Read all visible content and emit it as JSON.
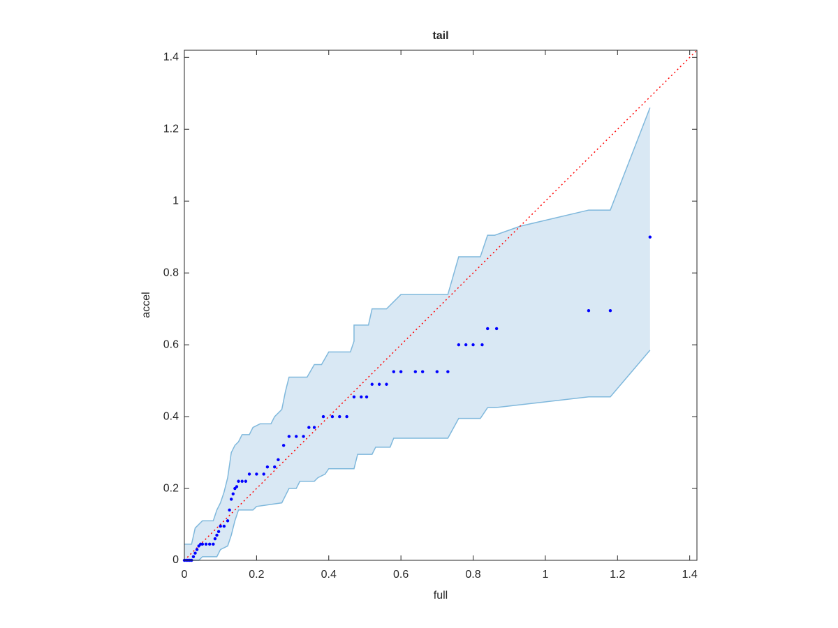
{
  "chart_data": {
    "type": "scatter",
    "title": "tail",
    "xlabel": "full",
    "ylabel": "accel",
    "xlim": [
      0,
      1.42
    ],
    "ylim": [
      0,
      1.42
    ],
    "xticks": [
      0,
      0.2,
      0.4,
      0.6,
      0.8,
      1,
      1.2,
      1.4
    ],
    "yticks": [
      0,
      0.2,
      0.4,
      0.6,
      0.8,
      1,
      1.2,
      1.4
    ],
    "points": {
      "color": "#0000ff",
      "x": [
        0,
        0.005,
        0.01,
        0.015,
        0.02,
        0.025,
        0.03,
        0.035,
        0.04,
        0.045,
        0.05,
        0.06,
        0.07,
        0.08,
        0.085,
        0.09,
        0.095,
        0.1,
        0.11,
        0.12,
        0.125,
        0.13,
        0.135,
        0.14,
        0.145,
        0.15,
        0.16,
        0.17,
        0.18,
        0.2,
        0.22,
        0.23,
        0.25,
        0.26,
        0.275,
        0.29,
        0.31,
        0.33,
        0.345,
        0.36,
        0.385,
        0.41,
        0.43,
        0.45,
        0.47,
        0.49,
        0.505,
        0.52,
        0.54,
        0.56,
        0.58,
        0.6,
        0.64,
        0.66,
        0.7,
        0.73,
        0.76,
        0.78,
        0.8,
        0.825,
        0.84,
        0.865,
        1.12,
        1.18,
        1.29
      ],
      "values": [
        0,
        0,
        0,
        0,
        0,
        0.01,
        0.02,
        0.03,
        0.04,
        0.045,
        0.045,
        0.045,
        0.045,
        0.045,
        0.06,
        0.07,
        0.08,
        0.095,
        0.095,
        0.11,
        0.14,
        0.17,
        0.185,
        0.2,
        0.205,
        0.22,
        0.22,
        0.22,
        0.24,
        0.24,
        0.24,
        0.26,
        0.26,
        0.28,
        0.32,
        0.345,
        0.345,
        0.345,
        0.37,
        0.37,
        0.4,
        0.4,
        0.4,
        0.4,
        0.455,
        0.455,
        0.455,
        0.49,
        0.49,
        0.49,
        0.525,
        0.525,
        0.525,
        0.525,
        0.525,
        0.525,
        0.6,
        0.6,
        0.6,
        0.6,
        0.645,
        0.645,
        0.695,
        0.695,
        0.9
      ]
    },
    "envelope": {
      "color": "#7fb8dc",
      "fill": "#d9e8f4",
      "upper": {
        "x": [
          0,
          0.02,
          0.03,
          0.05,
          0.08,
          0.09,
          0.1,
          0.11,
          0.12,
          0.13,
          0.14,
          0.15,
          0.16,
          0.18,
          0.19,
          0.21,
          0.24,
          0.25,
          0.27,
          0.28,
          0.29,
          0.34,
          0.36,
          0.38,
          0.4,
          0.46,
          0.47,
          0.47,
          0.51,
          0.52,
          0.56,
          0.6,
          0.73,
          0.76,
          0.82,
          0.84,
          0.86,
          0.93,
          1.12,
          1.18,
          1.29
        ],
        "values": [
          0.045,
          0.045,
          0.09,
          0.11,
          0.11,
          0.14,
          0.16,
          0.19,
          0.23,
          0.3,
          0.32,
          0.33,
          0.35,
          0.35,
          0.37,
          0.38,
          0.38,
          0.4,
          0.42,
          0.47,
          0.51,
          0.51,
          0.545,
          0.545,
          0.58,
          0.58,
          0.61,
          0.655,
          0.655,
          0.7,
          0.7,
          0.74,
          0.74,
          0.845,
          0.845,
          0.905,
          0.905,
          0.93,
          0.975,
          0.975,
          1.26
        ]
      },
      "lower": {
        "x": [
          0,
          0.04,
          0.05,
          0.09,
          0.1,
          0.12,
          0.13,
          0.14,
          0.15,
          0.19,
          0.2,
          0.27,
          0.28,
          0.29,
          0.31,
          0.32,
          0.36,
          0.37,
          0.39,
          0.4,
          0.47,
          0.48,
          0.52,
          0.53,
          0.57,
          0.58,
          0.73,
          0.76,
          0.82,
          0.84,
          0.86,
          1.12,
          1.18,
          1.29
        ],
        "values": [
          0,
          0,
          0.01,
          0.01,
          0.03,
          0.04,
          0.07,
          0.11,
          0.14,
          0.14,
          0.15,
          0.16,
          0.18,
          0.2,
          0.2,
          0.22,
          0.22,
          0.23,
          0.24,
          0.255,
          0.255,
          0.295,
          0.295,
          0.315,
          0.315,
          0.34,
          0.34,
          0.395,
          0.395,
          0.425,
          0.425,
          0.455,
          0.455,
          0.585
        ]
      }
    },
    "reference": {
      "color": "#ff0000",
      "x": [
        0,
        1.42
      ],
      "values": [
        0,
        1.42
      ]
    }
  }
}
